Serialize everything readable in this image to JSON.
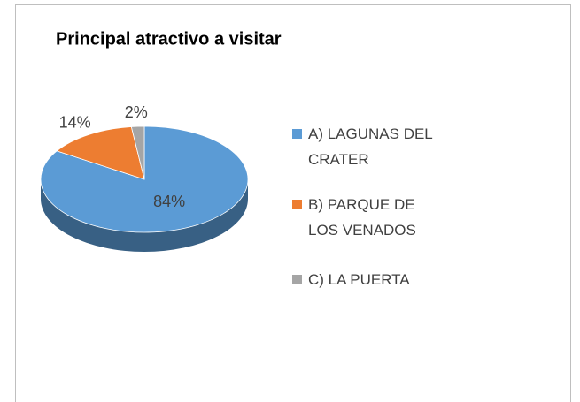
{
  "chart_data": {
    "type": "pie3d",
    "title": "Principal atractivo a visitar",
    "categories": [
      "A) LAGUNAS DEL CRATER",
      "B) PARQUE DE LOS VENADOS",
      "C) LA PUERTA"
    ],
    "values": [
      84,
      14,
      2
    ],
    "value_labels": [
      "84%",
      "14%",
      "2%"
    ],
    "colors": [
      "#5b9bd5",
      "#ed7d31",
      "#a5a5a5"
    ],
    "legend": "right"
  }
}
